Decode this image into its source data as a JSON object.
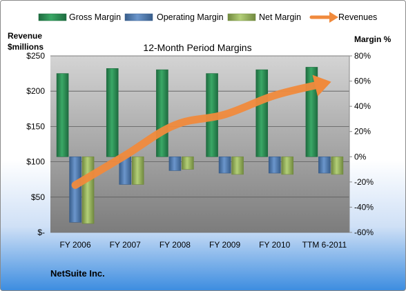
{
  "company": "NetSuite Inc.",
  "chart_data": {
    "type": "bar",
    "title": "12-Month Period Margins",
    "categories": [
      "FY 2006",
      "FY 2007",
      "FY 2008",
      "FY 2009",
      "FY 2010",
      "TTM 6-2011"
    ],
    "y_left": {
      "label_line1": "Revenue",
      "label_line2": "$millions",
      "ticks": [
        "$-",
        "$50",
        "$100",
        "$150",
        "$200",
        "$250"
      ],
      "range": [
        0,
        250
      ]
    },
    "y_right": {
      "label": "Margin %",
      "ticks": [
        "-60%",
        "-40%",
        "-20%",
        "0%",
        "20%",
        "40%",
        "60%",
        "80%"
      ],
      "range": [
        -60,
        80
      ]
    },
    "series": [
      {
        "name": "Gross Margin",
        "axis": "right",
        "kind": "bar",
        "color": "#2e8b57",
        "values": [
          66,
          70,
          69,
          66,
          69,
          71
        ]
      },
      {
        "name": "Operating Margin",
        "axis": "right",
        "kind": "bar",
        "color": "#4f81bd",
        "values": [
          -52,
          -22,
          -11,
          -13,
          -13,
          -13
        ]
      },
      {
        "name": "Net Margin",
        "axis": "right",
        "kind": "bar",
        "color": "#9bbb59",
        "values": [
          -53,
          -22,
          -10,
          -14,
          -14,
          -14
        ]
      },
      {
        "name": "Revenues",
        "axis": "left",
        "kind": "line",
        "color": "#f08a3c",
        "values": [
          67,
          109,
          152,
          167,
          194,
          211
        ]
      }
    ],
    "legend_position": "top",
    "grid": true
  }
}
